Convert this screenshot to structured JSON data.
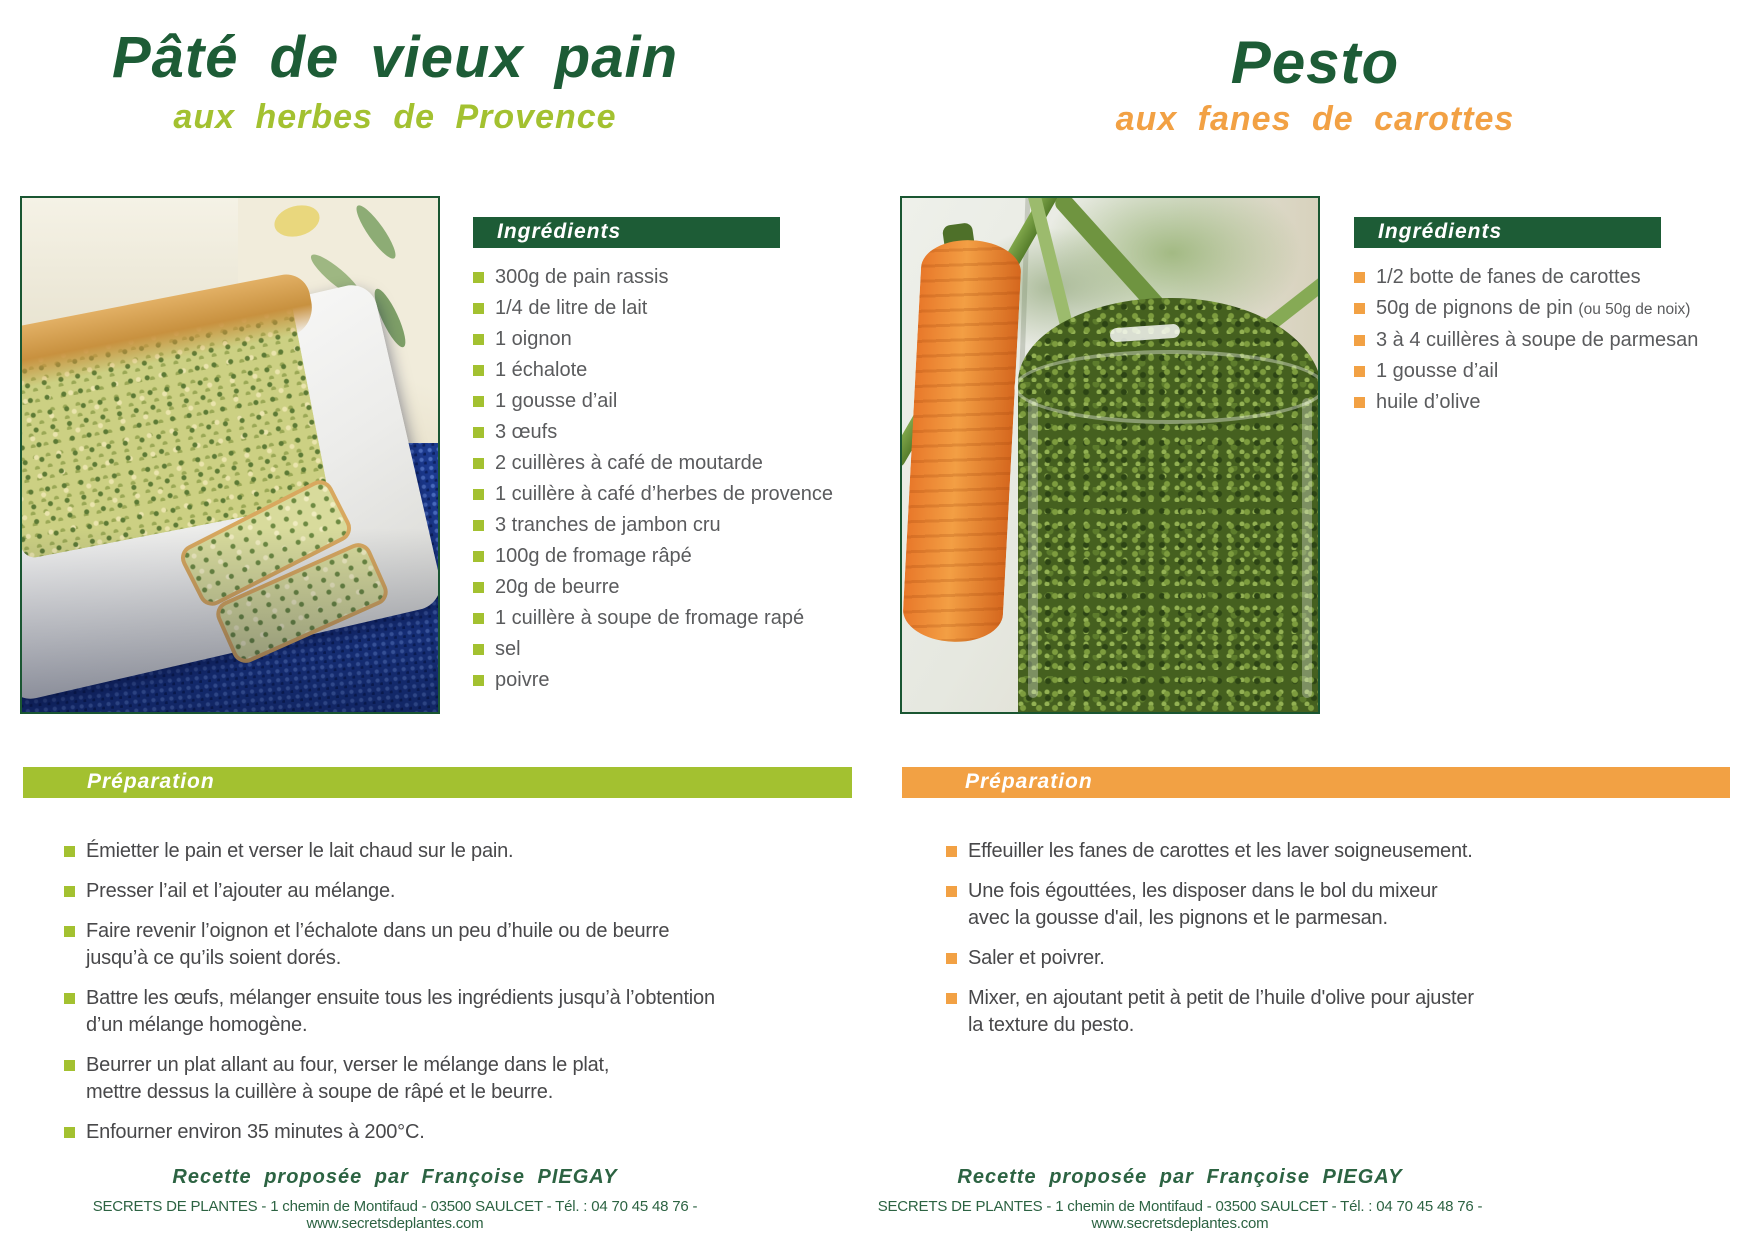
{
  "colors": {
    "dark_green": "#1d5c36",
    "light_green": "#a3c130",
    "orange": "#f2a144",
    "ingredient_text": "#5a5b5d"
  },
  "left": {
    "title": "Pâté de vieux pain",
    "subtitle": "aux herbes de Provence",
    "ingredients_title": "Ingrédients",
    "preparation_title": "Préparation",
    "ingredients": [
      "300g de pain rassis",
      "1/4 de litre de lait",
      "1 oignon",
      "1 échalote",
      "1 gousse d’ail",
      "3 œufs",
      "2 cuillères à café de moutarde",
      "1 cuillère à café d’herbes de provence",
      "3 tranches de jambon cru",
      "100g de fromage râpé",
      "20g de beurre",
      "1 cuillère à soupe de fromage rapé",
      "sel",
      "poivre"
    ],
    "steps": [
      "Émietter le pain et verser le lait chaud sur le pain.",
      "Presser l’ail et l’ajouter au mélange.",
      "Faire revenir l’oignon et l’échalote dans un peu d’huile ou de beurre\njusqu’à ce qu’ils soient dorés.",
      "Battre les œufs, mélanger ensuite tous les ingrédients jusqu’à l’obtention\nd’un mélange homogène.",
      "Beurrer un plat allant au four, verser le mélange dans le plat,\nmettre dessus la cuillère à soupe de râpé et le beurre.",
      "Enfourner environ 35 minutes  à 200°C."
    ]
  },
  "right": {
    "title": "Pesto",
    "subtitle": "aux fanes de carottes",
    "ingredients_title": "Ingrédients",
    "preparation_title": "Préparation",
    "ingredients": [
      "1/2 botte de fanes de carottes",
      {
        "main": "50g de pignons de pin",
        "note": "(ou 50g de noix)"
      },
      "3 à 4 cuillères à soupe de parmesan",
      "1 gousse d’ail",
      "huile d’olive"
    ],
    "steps": [
      "Effeuiller les fanes de carottes et les laver soigneusement.",
      "Une fois égouttées, les disposer dans le bol du mixeur\navec la gousse d'ail, les pignons et le parmesan.",
      "Saler et poivrer.",
      "Mixer, en ajoutant petit à petit de l’huile d'olive pour ajuster\nla texture du pesto."
    ]
  },
  "footer": {
    "credit": "Recette proposée par Françoise PIEGAY",
    "contact": "SECRETS DE PLANTES - 1 chemin de Montifaud - 03500 SAULCET - Tél. : 04 70 45 48 76 - www.secretsdeplantes.com"
  }
}
